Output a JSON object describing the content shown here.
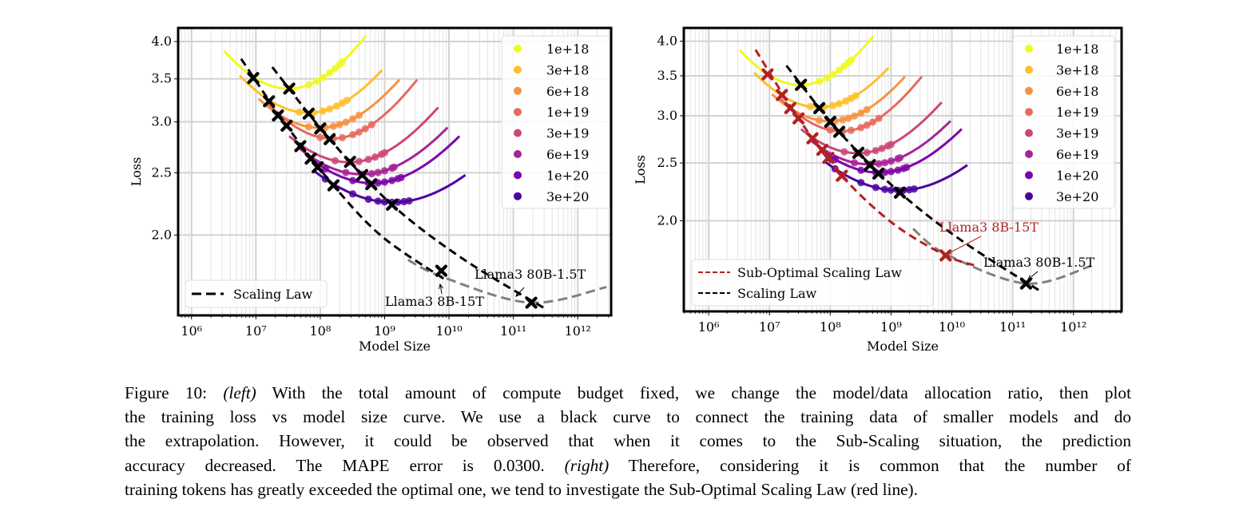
{
  "chart_data": [
    {
      "type": "line",
      "panel": "left",
      "xlabel": "Model Size",
      "ylabel": "Loss",
      "xscale": "log",
      "yscale": "log",
      "xlim": [
        620000.0,
        3300000000000.0
      ],
      "ylim": [
        1.5,
        4.2
      ],
      "xtick_values": [
        1000000.0,
        10000000.0,
        100000000.0,
        1000000000.0,
        10000000000.0,
        100000000000.0,
        1000000000000.0
      ],
      "xtick_labels": [
        "10⁶",
        "10⁷",
        "10⁸",
        "10⁹",
        "10¹⁰",
        "10¹¹",
        "10¹²"
      ],
      "ytick_values": [
        2.0,
        2.5,
        3.0,
        3.5,
        4.0
      ],
      "ytick_labels": [
        "2.0",
        "2.5",
        "3.0",
        "3.5",
        "4.0"
      ],
      "grid": true,
      "legend_budgets_placement": "top-right",
      "legend_lines_placement": "bottom-left",
      "budgets": [
        {
          "name": "1e+18",
          "color": "#f0f921",
          "curve": [
            [
              3200000.0,
              3.87
            ],
            [
              37000000.0,
              3.38
            ],
            [
              510000000.0,
              4.08
            ]
          ],
          "dots": [
            37000000.0,
            66000000.0,
            89000000.0,
            110000000.0,
            140000000.0,
            170000000.0,
            200000000.0,
            220000000.0
          ]
        },
        {
          "name": "3e+18",
          "color": "#fdbf2c",
          "curve": [
            [
              5600000.0,
              3.54
            ],
            [
              59000000.0,
              3.1
            ],
            [
              910000000.0,
              3.61
            ]
          ],
          "dots": [
            47000000.0,
            79000000.0,
            110000000.0,
            140000000.0,
            180000000.0,
            220000000.0,
            260000000.0
          ]
        },
        {
          "name": "6e+18",
          "color": "#f8923f",
          "curve": [
            [
              11000000.0,
              3.26
            ],
            [
              120000000.0,
              2.94
            ],
            [
              1700000000.0,
              3.49
            ]
          ],
          "dots": [
            66000000.0,
            120000000.0,
            160000000.0,
            200000000.0,
            250000000.0,
            320000000.0,
            400000000.0
          ]
        },
        {
          "name": "1e+19",
          "color": "#e56b5d",
          "curve": [
            [
              15000000.0,
              3.21
            ],
            [
              120000000.0,
              2.83
            ],
            [
              3200000000.0,
              3.49
            ]
          ],
          "dots": [
            100000000.0,
            160000000.0,
            220000000.0,
            320000000.0,
            400000000.0,
            500000000.0,
            630000000.0
          ]
        },
        {
          "name": "3e+19",
          "color": "#cc4778",
          "curve": [
            [
              33000000.0,
              2.85
            ],
            [
              460000000.0,
              2.61
            ],
            [
              6800000000.0,
              3.16
            ]
          ],
          "dots": [
            170000000.0,
            280000000.0,
            400000000.0,
            560000000.0,
            710000000.0,
            890000000.0,
            1000000000.0
          ]
        },
        {
          "name": "6e+19",
          "color": "#a82296",
          "curve": [
            [
              47000000.0,
              2.73
            ],
            [
              580000000.0,
              2.49
            ],
            [
              9500000000.0,
              2.94
            ]
          ],
          "dots": [
            250000000.0,
            450000000.0,
            630000000.0,
            790000000.0,
            1000000000.0,
            1300000000.0,
            1400000000.0
          ]
        },
        {
          "name": "1e+20",
          "color": "#7e03a8",
          "curve": [
            [
              74000000.0,
              2.62
            ],
            [
              720000000.0,
              2.41
            ],
            [
              14500000000.0,
              2.85
            ]
          ],
          "dots": [
            120000000.0,
            320000000.0,
            560000000.0,
            790000000.0,
            1000000000.0,
            1300000000.0,
            1600000000.0,
            1800000000.0
          ]
        },
        {
          "name": "3e+20",
          "color": "#4c02a1",
          "curve": [
            [
              83000000.0,
              2.51
            ],
            [
              1150000000.0,
              2.25
            ],
            [
              18000000000.0,
              2.48
            ]
          ],
          "dots": [
            120000000.0,
            320000000.0,
            560000000.0,
            790000000.0,
            1000000000.0,
            1300000000.0,
            1600000000.0,
            2000000000.0,
            2400000000.0
          ]
        }
      ],
      "lines": [
        {
          "name": "Scaling Law",
          "color": "#000000",
          "in_legend": true,
          "points": [
            [
              18000000.0,
              3.65
            ],
            [
              140000000.0,
              2.82
            ],
            [
              1300000000.0,
              2.23
            ],
            [
              16000000000.0,
              1.84
            ],
            [
              300000000000.0,
              1.54
            ]
          ],
          "markers": [
            [
              33000000.0,
              3.38
            ],
            [
              66000000.0,
              3.09
            ],
            [
              100000000.0,
              2.93
            ],
            [
              140000000.0,
              2.82
            ],
            [
              290000000.0,
              2.6
            ],
            [
              450000000.0,
              2.48
            ],
            [
              620000000.0,
              2.4
            ],
            [
              1300000000.0,
              2.23
            ],
            [
              190000000000.0,
              1.57
            ]
          ]
        },
        {
          "name": "",
          "color": "#000000",
          "in_legend": false,
          "points": [
            [
              5900000.0,
              3.76
            ],
            [
              30000000.0,
              2.96
            ],
            [
              160000000.0,
              2.39
            ],
            [
              910000000.0,
              1.99
            ],
            [
              9100000000.0,
              1.7
            ]
          ],
          "markers": [
            [
              9100000.0,
              3.51
            ],
            [
              16000000.0,
              3.23
            ],
            [
              22000000.0,
              3.07
            ],
            [
              30000000.0,
              2.96
            ],
            [
              49000000.0,
              2.75
            ],
            [
              71000000.0,
              2.63
            ],
            [
              91000000.0,
              2.55
            ],
            [
              160000000.0,
              2.39
            ],
            [
              7600000000.0,
              1.76
            ]
          ]
        },
        {
          "name": "",
          "color": "#808080",
          "in_legend": false,
          "points": [
            [
              2300000000.0,
              1.83
            ],
            [
              8100000000.0,
              1.72
            ],
            [
              180000000000.0,
              1.57
            ],
            [
              2800000000000.0,
              1.66
            ]
          ],
          "markers": []
        }
      ],
      "annotations": [
        {
          "text": "Llama3 80B-1.5T",
          "color": "#000000"
        },
        {
          "text": "Llama3 8B-15T",
          "color": "#000000"
        }
      ]
    },
    {
      "type": "line",
      "panel": "right",
      "xlabel": "Model Size",
      "ylabel": "Loss",
      "xscale": "log",
      "yscale": "log",
      "xlim": [
        390000.0,
        6200000000000.0
      ],
      "ylim": [
        1.41,
        4.21
      ],
      "xtick_values": [
        1000000.0,
        10000000.0,
        100000000.0,
        1000000000.0,
        10000000000.0,
        100000000000.0,
        1000000000000.0
      ],
      "xtick_labels": [
        "10⁶",
        "10⁷",
        "10⁸",
        "10⁹",
        "10¹⁰",
        "10¹¹",
        "10¹²"
      ],
      "ytick_values": [
        2.0,
        2.5,
        3.0,
        3.5,
        4.0
      ],
      "ytick_labels": [
        "2.0",
        "2.5",
        "3.0",
        "3.5",
        "4.0"
      ],
      "grid": true,
      "legend_budgets_placement": "top-right",
      "legend_lines_placement": "bottom-left",
      "budgets": [
        {
          "name": "1e+18",
          "color": "#f0f921",
          "curve": [
            [
              3200000.0,
              3.87
            ],
            [
              37000000.0,
              3.38
            ],
            [
              510000000.0,
              4.08
            ]
          ],
          "dots": [
            37000000.0,
            66000000.0,
            89000000.0,
            110000000.0,
            140000000.0,
            170000000.0,
            200000000.0,
            220000000.0
          ]
        },
        {
          "name": "3e+18",
          "color": "#fdbf2c",
          "curve": [
            [
              5600000.0,
              3.54
            ],
            [
              59000000.0,
              3.1
            ],
            [
              910000000.0,
              3.61
            ]
          ],
          "dots": [
            47000000.0,
            79000000.0,
            110000000.0,
            140000000.0,
            180000000.0,
            220000000.0,
            260000000.0
          ]
        },
        {
          "name": "6e+18",
          "color": "#f8923f",
          "curve": [
            [
              11000000.0,
              3.26
            ],
            [
              120000000.0,
              2.94
            ],
            [
              1700000000.0,
              3.49
            ]
          ],
          "dots": [
            66000000.0,
            120000000.0,
            160000000.0,
            200000000.0,
            250000000.0,
            320000000.0,
            400000000.0
          ]
        },
        {
          "name": "1e+19",
          "color": "#e56b5d",
          "curve": [
            [
              15000000.0,
              3.21
            ],
            [
              120000000.0,
              2.83
            ],
            [
              3200000000.0,
              3.49
            ]
          ],
          "dots": [
            100000000.0,
            160000000.0,
            220000000.0,
            320000000.0,
            400000000.0,
            500000000.0,
            630000000.0
          ]
        },
        {
          "name": "3e+19",
          "color": "#cc4778",
          "curve": [
            [
              33000000.0,
              2.85
            ],
            [
              460000000.0,
              2.61
            ],
            [
              6800000000.0,
              3.16
            ]
          ],
          "dots": [
            170000000.0,
            280000000.0,
            400000000.0,
            560000000.0,
            710000000.0,
            890000000.0,
            1000000000.0
          ]
        },
        {
          "name": "6e+19",
          "color": "#a82296",
          "curve": [
            [
              47000000.0,
              2.73
            ],
            [
              580000000.0,
              2.49
            ],
            [
              9500000000.0,
              2.94
            ]
          ],
          "dots": [
            250000000.0,
            450000000.0,
            630000000.0,
            790000000.0,
            1000000000.0,
            1300000000.0,
            1400000000.0
          ]
        },
        {
          "name": "1e+20",
          "color": "#7e03a8",
          "curve": [
            [
              74000000.0,
              2.62
            ],
            [
              720000000.0,
              2.41
            ],
            [
              14500000000.0,
              2.85
            ]
          ],
          "dots": [
            120000000.0,
            320000000.0,
            560000000.0,
            790000000.0,
            1000000000.0,
            1300000000.0,
            1600000000.0,
            1800000000.0
          ]
        },
        {
          "name": "3e+20",
          "color": "#4c02a1",
          "curve": [
            [
              83000000.0,
              2.51
            ],
            [
              1150000000.0,
              2.25
            ],
            [
              18000000000.0,
              2.48
            ]
          ],
          "dots": [
            120000000.0,
            320000000.0,
            560000000.0,
            790000000.0,
            1000000000.0,
            1300000000.0,
            1600000000.0,
            2000000000.0,
            2400000000.0
          ]
        }
      ],
      "lines": [
        {
          "name": "Sub-Optimal Scaling Law",
          "color": "#b22222",
          "in_legend": true,
          "points": [
            [
              5900000.0,
              3.87
            ],
            [
              30000000.0,
              2.97
            ],
            [
              155000000.0,
              2.38
            ],
            [
              1070000000.0,
              1.98
            ],
            [
              7900000000.0,
              1.75
            ],
            [
              26000000000.0,
              1.68
            ]
          ],
          "markers": [
            [
              9300000.0,
              3.52
            ],
            [
              16000000.0,
              3.25
            ],
            [
              22000000.0,
              3.09
            ],
            [
              30000000.0,
              2.97
            ],
            [
              51000000.0,
              2.75
            ],
            [
              74000000.0,
              2.63
            ],
            [
              93000000.0,
              2.55
            ],
            [
              155000000.0,
              2.38
            ],
            [
              7900000000.0,
              1.75
            ]
          ]
        },
        {
          "name": "Scaling Law",
          "color": "#000000",
          "in_legend": true,
          "points": [
            [
              19000000.0,
              3.64
            ],
            [
              140000000.0,
              2.82
            ],
            [
              1400000000.0,
              2.23
            ],
            [
              16000000000.0,
              1.84
            ],
            [
              300000000000.0,
              1.52
            ]
          ],
          "markers": [
            [
              33000000.0,
              3.38
            ],
            [
              66000000.0,
              3.09
            ],
            [
              100000000.0,
              2.93
            ],
            [
              140000000.0,
              2.82
            ],
            [
              290000000.0,
              2.6
            ],
            [
              450000000.0,
              2.48
            ],
            [
              620000000.0,
              2.4
            ],
            [
              1400000000.0,
              2.23
            ],
            [
              166000000000.0,
              1.57
            ]
          ]
        },
        {
          "name": "",
          "color": "#808080",
          "in_legend": false,
          "points": [
            [
              2300000000.0,
              1.94
            ],
            [
              7900000000.0,
              1.76
            ],
            [
              166000000000.0,
              1.57
            ],
            [
              1950000000000.0,
              1.68
            ]
          ],
          "markers": []
        }
      ],
      "annotations": [
        {
          "text": "Llama3 8B-15T",
          "color": "#b22222"
        },
        {
          "text": "Llama3 80B-1.5T",
          "color": "#000000"
        }
      ]
    }
  ],
  "caption": {
    "l1a": "Figure 10: ",
    "l1b": "(left)",
    "l1c": " With the total amount of compute budget fixed, we change the model/data allocation ratio, then plot",
    "l2": "the training loss vs model size curve. We use a black curve to connect the training data of smaller models and do",
    "l3": "the extrapolation. However, it could be observed that when it comes to the Sub-Scaling situation, the prediction",
    "l4a": "accuracy decreased. The MAPE error is 0.0300. ",
    "l4b": "(right)",
    "l4c": " Therefore, considering it is common that the number of",
    "l5": "training tokens has greatly exceeded the optimal one, we tend to investigate the Sub-Optimal Scaling Law (red line)."
  }
}
